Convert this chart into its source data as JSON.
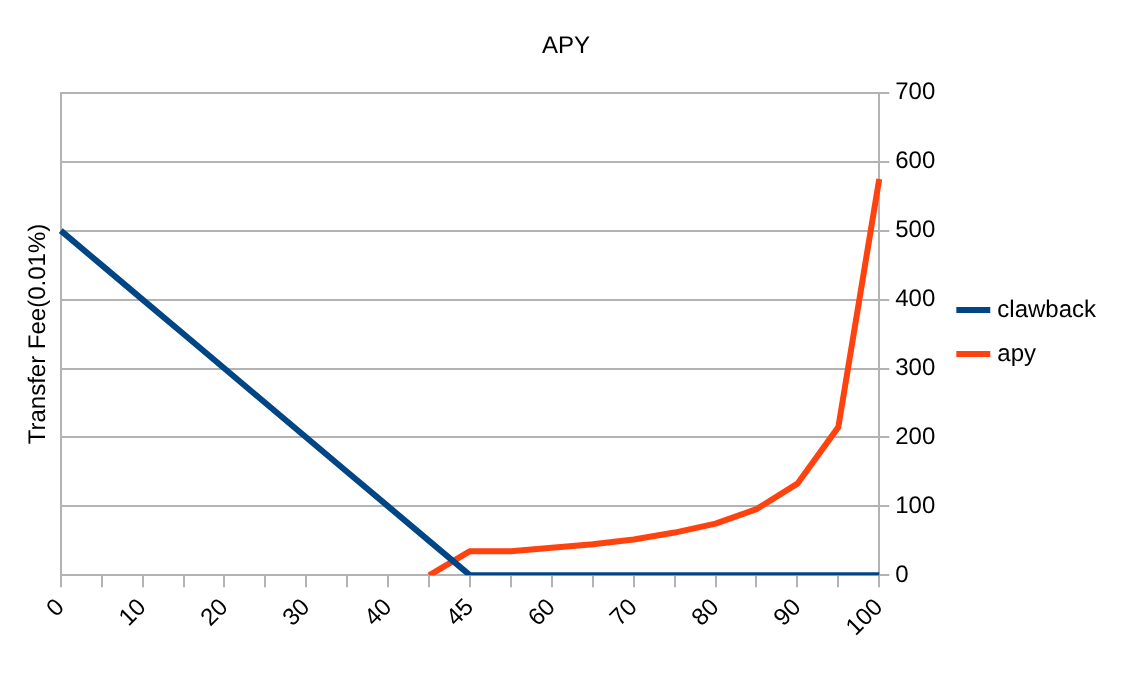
{
  "chart_data": {
    "type": "line",
    "title": "APY",
    "ylabel": "Transfer Fee(0.01%)",
    "categories": [
      "0",
      null,
      "10",
      null,
      "20",
      null,
      "30",
      null,
      "40",
      null,
      "45",
      null,
      "60",
      null,
      "70",
      null,
      "80",
      null,
      "90",
      null,
      "100"
    ],
    "series": [
      {
        "name": "clawback",
        "color": "#004586",
        "values": [
          500,
          450,
          400,
          350,
          300,
          250,
          200,
          150,
          100,
          50,
          0,
          0,
          0,
          0,
          0,
          0,
          0,
          0,
          0,
          0,
          0
        ]
      },
      {
        "name": "apy",
        "color": "#ff420e",
        "values": [
          null,
          null,
          null,
          null,
          null,
          null,
          null,
          null,
          null,
          0,
          35,
          35,
          40,
          45,
          52,
          62,
          75,
          96,
          133,
          215,
          575
        ]
      }
    ],
    "ylim": [
      0,
      700
    ],
    "yticks": [
      0,
      100,
      200,
      300,
      400,
      500,
      600,
      700
    ],
    "grid": "y",
    "legend": "right",
    "marker": "none",
    "line_style": "solid"
  }
}
